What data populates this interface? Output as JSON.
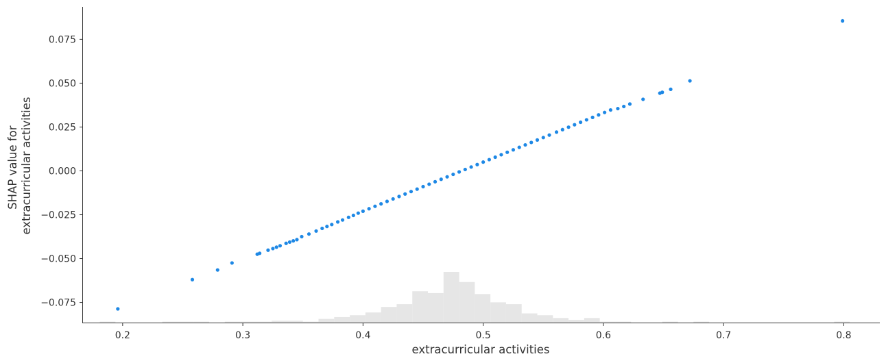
{
  "chart_data": {
    "type": "scatter",
    "title": "",
    "xlabel": "extracurricular activities",
    "ylabel_lines": [
      "SHAP value for",
      "extracurricular activities"
    ],
    "xlim": [
      0.167,
      0.83
    ],
    "ylim": [
      -0.0865,
      0.0935
    ],
    "x_ticks": [
      0.2,
      0.3,
      0.4,
      0.5,
      0.6,
      0.7,
      0.8
    ],
    "x_tick_labels": [
      "0.2",
      "0.3",
      "0.4",
      "0.5",
      "0.6",
      "0.7",
      "0.8"
    ],
    "y_ticks": [
      0.075,
      0.05,
      0.025,
      0.0,
      -0.025,
      -0.05,
      -0.075
    ],
    "y_tick_labels": [
      "0.075",
      "0.050",
      "0.025",
      "0.000",
      "−0.025",
      "−0.050",
      "−0.075"
    ],
    "grid": false,
    "point_color": "#1e88e5",
    "histogram_color": "#e6e6e6",
    "series": [
      {
        "points": [
          [
            0.196,
            -0.0787
          ],
          [
            0.258,
            -0.062
          ],
          [
            0.279,
            -0.0565
          ],
          [
            0.291,
            -0.0525
          ],
          [
            0.312,
            -0.0475
          ],
          [
            0.314,
            -0.047
          ],
          [
            0.321,
            -0.0452
          ],
          [
            0.325,
            -0.0443
          ],
          [
            0.328,
            -0.0435
          ],
          [
            0.331,
            -0.0427
          ],
          [
            0.336,
            -0.0413
          ],
          [
            0.339,
            -0.0406
          ],
          [
            0.342,
            -0.0399
          ],
          [
            0.345,
            -0.0392
          ],
          [
            0.349,
            -0.0375
          ],
          [
            0.355,
            -0.036
          ],
          [
            0.361,
            -0.0343
          ],
          [
            0.366,
            -0.0328
          ],
          [
            0.37,
            -0.0317
          ],
          [
            0.374,
            -0.0306
          ],
          [
            0.379,
            -0.0291
          ],
          [
            0.383,
            -0.028
          ],
          [
            0.388,
            -0.0265
          ],
          [
            0.392,
            -0.0254
          ],
          [
            0.396,
            -0.0241
          ],
          [
            0.4,
            -0.023
          ],
          [
            0.405,
            -0.0216
          ],
          [
            0.41,
            -0.0202
          ],
          [
            0.415,
            -0.0188
          ],
          [
            0.42,
            -0.0174
          ],
          [
            0.425,
            -0.016
          ],
          [
            0.43,
            -0.0146
          ],
          [
            0.435,
            -0.0132
          ],
          [
            0.44,
            -0.0118
          ],
          [
            0.445,
            -0.0104
          ],
          [
            0.45,
            -0.009
          ],
          [
            0.455,
            -0.0076
          ],
          [
            0.46,
            -0.0062
          ],
          [
            0.465,
            -0.0048
          ],
          [
            0.47,
            -0.0034
          ],
          [
            0.475,
            -0.002
          ],
          [
            0.48,
            -0.0006
          ],
          [
            0.485,
            0.0008
          ],
          [
            0.49,
            0.0022
          ],
          [
            0.495,
            0.0036
          ],
          [
            0.5,
            0.005
          ],
          [
            0.505,
            0.0064
          ],
          [
            0.51,
            0.0078
          ],
          [
            0.515,
            0.0092
          ],
          [
            0.52,
            0.0106
          ],
          [
            0.525,
            0.012
          ],
          [
            0.53,
            0.0134
          ],
          [
            0.535,
            0.0148
          ],
          [
            0.54,
            0.0162
          ],
          [
            0.545,
            0.0176
          ],
          [
            0.55,
            0.019
          ],
          [
            0.555,
            0.0204
          ],
          [
            0.561,
            0.0221
          ],
          [
            0.566,
            0.0235
          ],
          [
            0.571,
            0.0249
          ],
          [
            0.576,
            0.0263
          ],
          [
            0.581,
            0.0277
          ],
          [
            0.586,
            0.0291
          ],
          [
            0.591,
            0.0305
          ],
          [
            0.596,
            0.0319
          ],
          [
            0.601,
            0.0333
          ],
          [
            0.606,
            0.0347
          ],
          [
            0.612,
            0.0355
          ],
          [
            0.617,
            0.0367
          ],
          [
            0.622,
            0.0381
          ],
          [
            0.633,
            0.0408
          ],
          [
            0.647,
            0.0443
          ],
          [
            0.649,
            0.0448
          ],
          [
            0.656,
            0.0465
          ],
          [
            0.672,
            0.0513
          ],
          [
            0.799,
            0.0855
          ]
        ]
      }
    ],
    "histogram": {
      "bin_edges": [
        0.155,
        0.168,
        0.181,
        0.194,
        0.207,
        0.22,
        0.233,
        0.246,
        0.259,
        0.272,
        0.285,
        0.298,
        0.311,
        0.324,
        0.337,
        0.35,
        0.363,
        0.376,
        0.389,
        0.402,
        0.415,
        0.428,
        0.441,
        0.454,
        0.467,
        0.48,
        0.493,
        0.506,
        0.519,
        0.532,
        0.545,
        0.558,
        0.571,
        0.584,
        0.597,
        0.61,
        0.623,
        0.636,
        0.649,
        0.662,
        0.675,
        0.688,
        0.701,
        0.714,
        0.727,
        0.74,
        0.753,
        0.766,
        0.779,
        0.792,
        0.805
      ],
      "counts": [
        0,
        0,
        1,
        0,
        0,
        0,
        1,
        1,
        1,
        0,
        1,
        1,
        1,
        2,
        2,
        1,
        4,
        6,
        8,
        11,
        17,
        20,
        34,
        32,
        55,
        44,
        31,
        22,
        20,
        10,
        8,
        5,
        3,
        5,
        1,
        1,
        0,
        0,
        1,
        0,
        1,
        0,
        0,
        0,
        0,
        0,
        0,
        0,
        0,
        1
      ]
    }
  }
}
